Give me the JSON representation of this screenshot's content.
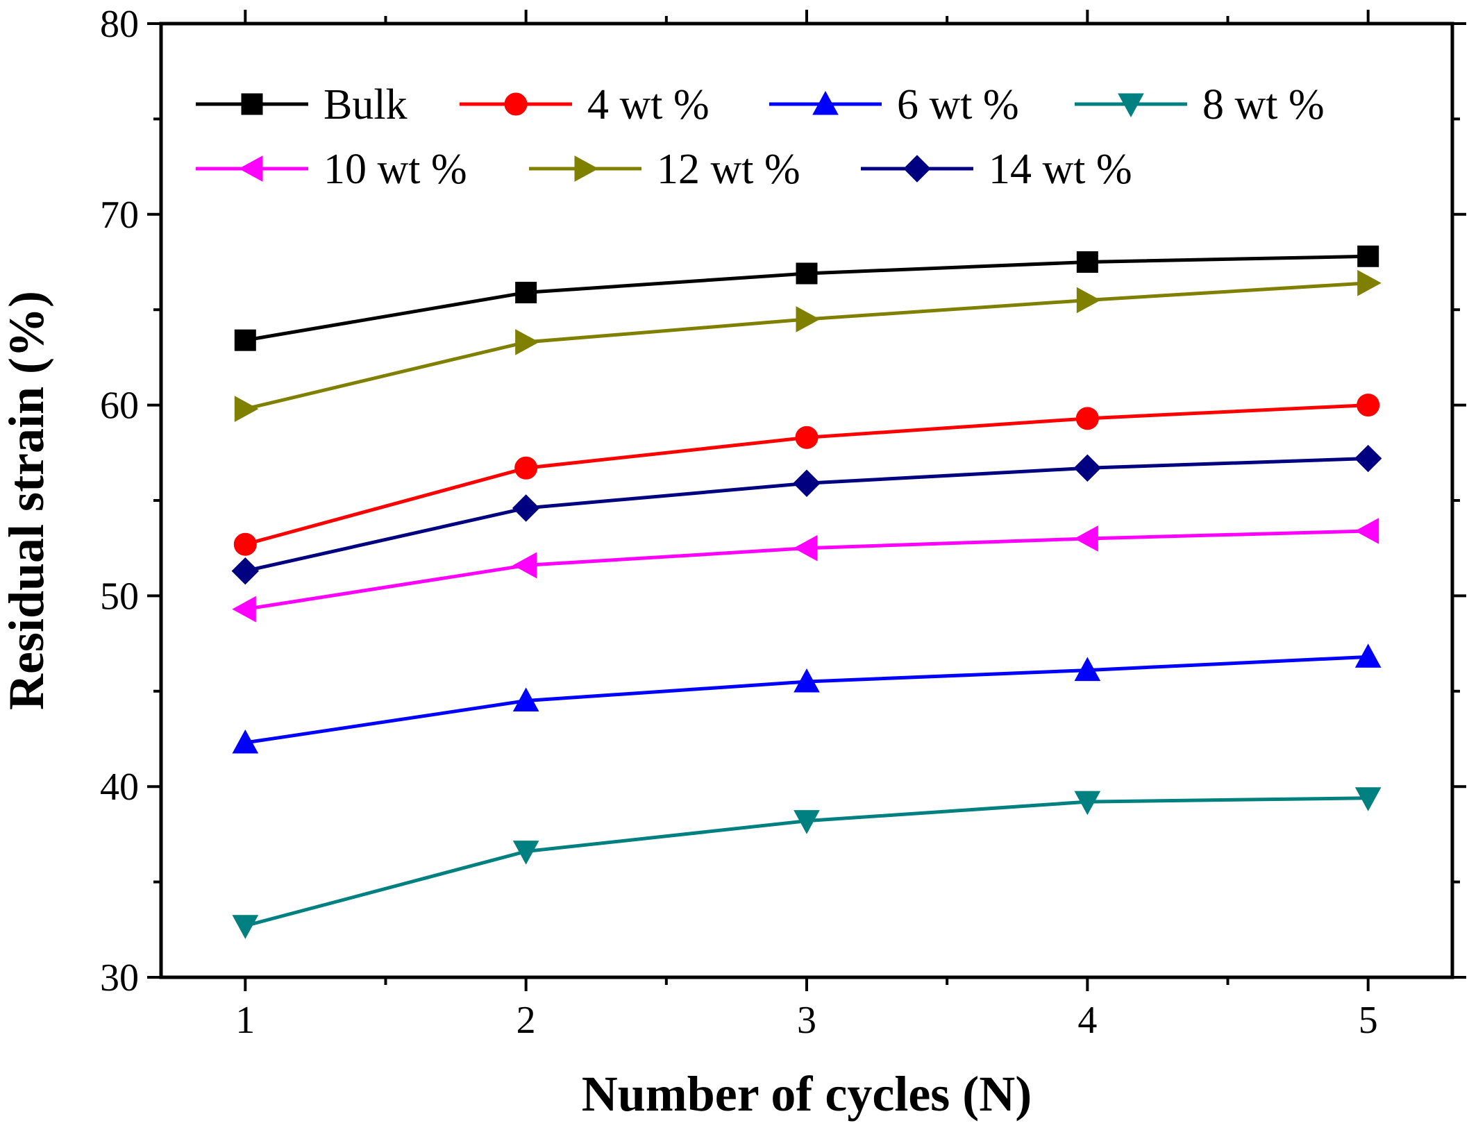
{
  "chart_data": {
    "type": "line",
    "title": "",
    "xlabel": "Number of cycles (N)",
    "ylabel": "Residual strain (%)",
    "xlim": [
      0.7,
      5.3
    ],
    "ylim": [
      30,
      80
    ],
    "x_ticks": [
      1,
      2,
      3,
      4,
      5
    ],
    "x_tick_labels": [
      "1",
      "2",
      "3",
      "4",
      "5"
    ],
    "y_ticks": [
      30,
      40,
      50,
      60,
      70,
      80
    ],
    "y_tick_labels": [
      "30",
      "40",
      "50",
      "60",
      "70",
      "80"
    ],
    "grid": false,
    "legend_position": "top",
    "x": [
      1,
      2,
      3,
      4,
      5
    ],
    "series": [
      {
        "name": "Bulk",
        "color": "#000000",
        "marker": "square",
        "values": [
          63.4,
          65.9,
          66.9,
          67.5,
          67.8
        ]
      },
      {
        "name": "4 wt %",
        "color": "#ff0000",
        "marker": "circle",
        "values": [
          52.7,
          56.7,
          58.3,
          59.3,
          60.0
        ]
      },
      {
        "name": "6 wt %",
        "color": "#0000ff",
        "marker": "triangle-up",
        "values": [
          42.3,
          44.5,
          45.5,
          46.1,
          46.8
        ]
      },
      {
        "name": "8 wt %",
        "color": "#008080",
        "marker": "triangle-down",
        "values": [
          32.7,
          36.6,
          38.2,
          39.2,
          39.4
        ]
      },
      {
        "name": "10 wt %",
        "color": "#ff00ff",
        "marker": "triangle-left",
        "values": [
          49.3,
          51.6,
          52.5,
          53.0,
          53.4
        ]
      },
      {
        "name": "12 wt %",
        "color": "#808000",
        "marker": "triangle-right",
        "values": [
          59.8,
          63.3,
          64.5,
          65.5,
          66.4
        ]
      },
      {
        "name": "14 wt %",
        "color": "#000080",
        "marker": "diamond",
        "values": [
          51.3,
          54.6,
          55.9,
          56.7,
          57.2
        ]
      }
    ]
  }
}
